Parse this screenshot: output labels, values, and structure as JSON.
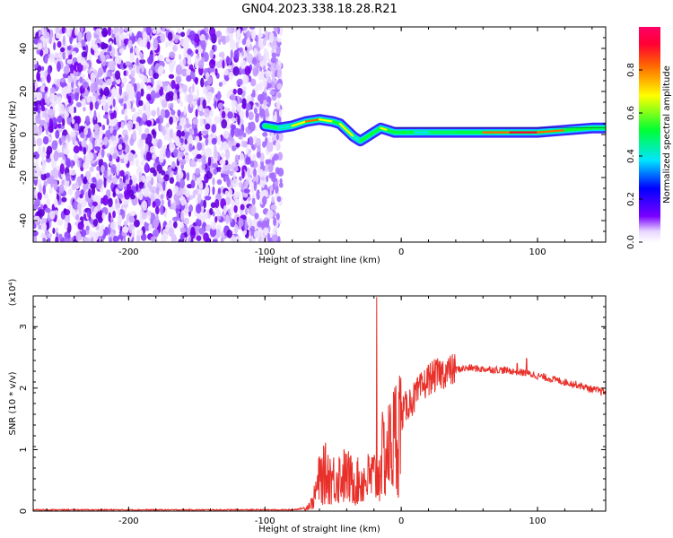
{
  "title": "GN04.2023.338.18.28.R21",
  "colors": {
    "snr_line": "#e8302a",
    "background": "#ffffff",
    "colorbar_stops": [
      "#ffffff",
      "#6a00ff",
      "#0000ff",
      "#00e5ff",
      "#00ff33",
      "#ffff00",
      "#ff6600",
      "#ff0033",
      "#ff0066"
    ]
  },
  "chart_data": [
    {
      "type": "heatmap",
      "name": "spectrogram",
      "xlabel": "Height of straight line (km)",
      "ylabel": "Frequency (Hz)",
      "xlim": [
        -270,
        150
      ],
      "ylim": [
        -50,
        50
      ],
      "x_ticks": [
        -200,
        -100,
        0,
        100
      ],
      "y_ticks": [
        -40,
        -20,
        0,
        20,
        40
      ],
      "colorbar": {
        "label": "Normalized spectral amplitude",
        "range": [
          0.0,
          1.0
        ],
        "ticks": [
          0.0,
          0.2,
          0.4,
          0.6,
          0.8
        ]
      },
      "noise_region_x": [
        -270,
        -88
      ],
      "signal_track": {
        "x": [
          -100,
          -90,
          -80,
          -70,
          -60,
          -50,
          -45,
          -40,
          -35,
          -30,
          -25,
          -20,
          -15,
          -10,
          -5,
          0,
          10,
          20,
          40,
          60,
          80,
          100,
          120,
          140,
          150
        ],
        "freq": [
          4,
          3,
          4,
          6,
          7,
          6,
          5,
          2,
          -1,
          -3,
          -1,
          1,
          3,
          2,
          1,
          1,
          1,
          1,
          1,
          1,
          1,
          1,
          2,
          3,
          3
        ],
        "amplitude": [
          0.3,
          0.45,
          0.55,
          0.85,
          0.8,
          0.75,
          0.55,
          0.9,
          0.55,
          0.5,
          0.75,
          0.55,
          0.8,
          0.6,
          0.55,
          0.8,
          0.55,
          0.5,
          0.45,
          0.9,
          0.95,
          0.95,
          0.85,
          0.5,
          0.4
        ]
      },
      "grid": false
    },
    {
      "type": "line",
      "name": "snr",
      "xlabel": "Height of straight line (km)",
      "ylabel": "SNR (10 * v/v)",
      "y_scale_label": "(x10⁴)",
      "xlim": [
        -270,
        150
      ],
      "ylim": [
        0,
        3.5
      ],
      "x_ticks": [
        -200,
        -100,
        0,
        100
      ],
      "y_ticks": [
        0,
        1,
        2,
        3
      ],
      "envelope": {
        "x": [
          -270,
          -80,
          -70,
          -65,
          -60,
          -55,
          -50,
          -45,
          -40,
          -35,
          -30,
          -25,
          -20,
          -17,
          -15,
          -10,
          -5,
          0,
          5,
          10,
          20,
          30,
          40,
          50,
          60,
          70,
          80,
          90,
          100,
          110,
          120,
          130,
          140,
          150
        ],
        "y": [
          0.02,
          0.02,
          0.05,
          0.15,
          0.55,
          0.65,
          0.55,
          0.6,
          0.6,
          0.5,
          0.5,
          0.55,
          0.6,
          0.5,
          0.9,
          1.0,
          1.25,
          1.55,
          1.75,
          1.85,
          2.15,
          2.25,
          2.3,
          2.33,
          2.31,
          2.3,
          2.28,
          2.25,
          2.2,
          2.15,
          2.1,
          2.05,
          1.98,
          1.93
        ]
      },
      "spikes": [
        {
          "x": -18,
          "y": 3.48
        },
        {
          "x": 92,
          "y": 2.48
        },
        {
          "x": 85,
          "y": 2.4
        }
      ],
      "grid": false
    }
  ]
}
